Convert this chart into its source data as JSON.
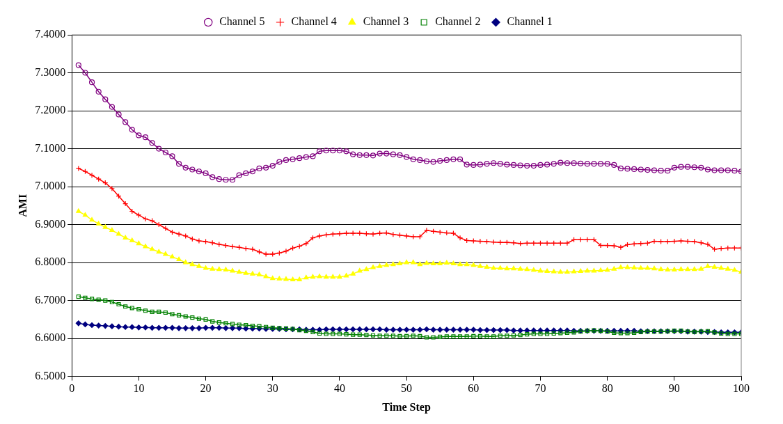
{
  "chart_data": {
    "type": "line",
    "xlabel": "Time Step",
    "ylabel": "AMI",
    "xlim": [
      0,
      100
    ],
    "xticks": [
      0,
      10,
      20,
      30,
      40,
      50,
      60,
      70,
      80,
      90,
      100
    ],
    "ylim": [
      6.5,
      7.4
    ],
    "yticks": [
      {
        "value": 6.5,
        "label": "6.5000"
      },
      {
        "value": 6.6,
        "label": "6.6000"
      },
      {
        "value": 6.7,
        "label": "6.7000"
      },
      {
        "value": 6.8,
        "label": "6.8000"
      },
      {
        "value": 6.9,
        "label": "6.9000"
      },
      {
        "value": 7.0,
        "label": "7.0000"
      },
      {
        "value": 7.1,
        "label": "7.1000"
      },
      {
        "value": 7.2,
        "label": "7.2000"
      },
      {
        "value": 7.3,
        "label": "7.3000"
      },
      {
        "value": 7.4,
        "label": "7.4000"
      }
    ],
    "grid": "y",
    "legend": "top",
    "line_style": "solid",
    "x": [
      1,
      2,
      3,
      4,
      5,
      6,
      7,
      8,
      9,
      10,
      11,
      12,
      13,
      14,
      15,
      16,
      17,
      18,
      19,
      20,
      21,
      22,
      23,
      24,
      25,
      26,
      27,
      28,
      29,
      30,
      31,
      32,
      33,
      34,
      35,
      36,
      37,
      38,
      39,
      40,
      41,
      42,
      43,
      44,
      45,
      46,
      47,
      48,
      49,
      50,
      51,
      52,
      53,
      54,
      55,
      56,
      57,
      58,
      59,
      60,
      61,
      62,
      63,
      64,
      65,
      66,
      67,
      68,
      69,
      70,
      71,
      72,
      73,
      74,
      75,
      76,
      77,
      78,
      79,
      80,
      81,
      82,
      83,
      84,
      85,
      86,
      87,
      88,
      89,
      90,
      91,
      92,
      93,
      94,
      95,
      96,
      97,
      98,
      99,
      100
    ],
    "series": [
      {
        "name": "Channel 5",
        "color": "#800080",
        "marker": "circle",
        "values": [
          7.32,
          7.3,
          7.275,
          7.25,
          7.23,
          7.21,
          7.19,
          7.17,
          7.15,
          7.135,
          7.13,
          7.115,
          7.1,
          7.09,
          7.08,
          7.06,
          7.05,
          7.045,
          7.04,
          7.035,
          7.025,
          7.02,
          7.018,
          7.018,
          7.03,
          7.035,
          7.04,
          7.048,
          7.05,
          7.055,
          7.065,
          7.07,
          7.072,
          7.075,
          7.078,
          7.08,
          7.093,
          7.095,
          7.095,
          7.095,
          7.093,
          7.085,
          7.083,
          7.083,
          7.082,
          7.087,
          7.087,
          7.085,
          7.083,
          7.078,
          7.072,
          7.07,
          7.067,
          7.065,
          7.068,
          7.07,
          7.072,
          7.072,
          7.058,
          7.057,
          7.058,
          7.06,
          7.062,
          7.06,
          7.058,
          7.057,
          7.056,
          7.055,
          7.055,
          7.057,
          7.058,
          7.06,
          7.063,
          7.062,
          7.062,
          7.061,
          7.06,
          7.06,
          7.06,
          7.06,
          7.057,
          7.048,
          7.047,
          7.046,
          7.045,
          7.044,
          7.043,
          7.042,
          7.042,
          7.05,
          7.052,
          7.052,
          7.051,
          7.05,
          7.045,
          7.043,
          7.043,
          7.043,
          7.042,
          7.04
        ]
      },
      {
        "name": "Channel 4",
        "color": "#ff0000",
        "marker": "cross",
        "values": [
          7.048,
          7.04,
          7.03,
          7.02,
          7.01,
          6.995,
          6.975,
          6.955,
          6.935,
          6.925,
          6.915,
          6.91,
          6.9,
          6.89,
          6.88,
          6.875,
          6.87,
          6.862,
          6.857,
          6.855,
          6.852,
          6.848,
          6.845,
          6.842,
          6.84,
          6.837,
          6.835,
          6.828,
          6.822,
          6.822,
          6.825,
          6.83,
          6.838,
          6.843,
          6.85,
          6.865,
          6.87,
          6.873,
          6.875,
          6.876,
          6.877,
          6.877,
          6.877,
          6.876,
          6.875,
          6.877,
          6.878,
          6.874,
          6.872,
          6.87,
          6.868,
          6.868,
          6.885,
          6.882,
          6.88,
          6.878,
          6.877,
          6.865,
          6.858,
          6.857,
          6.856,
          6.855,
          6.854,
          6.853,
          6.853,
          6.852,
          6.85,
          6.851,
          6.851,
          6.851,
          6.851,
          6.851,
          6.851,
          6.851,
          6.86,
          6.86,
          6.86,
          6.86,
          6.845,
          6.845,
          6.844,
          6.84,
          6.847,
          6.849,
          6.85,
          6.851,
          6.856,
          6.855,
          6.855,
          6.856,
          6.857,
          6.856,
          6.855,
          6.852,
          6.848,
          6.835,
          6.837,
          6.838,
          6.838,
          6.838
        ]
      },
      {
        "name": "Channel 3",
        "color": "#ffff00",
        "marker": "triangle",
        "values": [
          6.935,
          6.925,
          6.912,
          6.902,
          6.893,
          6.885,
          6.875,
          6.865,
          6.858,
          6.85,
          6.842,
          6.835,
          6.828,
          6.822,
          6.815,
          6.808,
          6.8,
          6.795,
          6.79,
          6.785,
          6.783,
          6.782,
          6.781,
          6.778,
          6.775,
          6.772,
          6.77,
          6.768,
          6.763,
          6.758,
          6.757,
          6.756,
          6.755,
          6.755,
          6.76,
          6.762,
          6.763,
          6.762,
          6.762,
          6.762,
          6.765,
          6.77,
          6.778,
          6.782,
          6.787,
          6.79,
          6.793,
          6.795,
          6.797,
          6.8,
          6.8,
          6.795,
          6.798,
          6.797,
          6.797,
          6.799,
          6.797,
          6.795,
          6.795,
          6.793,
          6.79,
          6.788,
          6.785,
          6.785,
          6.784,
          6.784,
          6.783,
          6.782,
          6.78,
          6.778,
          6.777,
          6.776,
          6.775,
          6.775,
          6.776,
          6.777,
          6.778,
          6.778,
          6.779,
          6.78,
          6.783,
          6.787,
          6.787,
          6.786,
          6.785,
          6.785,
          6.784,
          6.782,
          6.781,
          6.781,
          6.782,
          6.782,
          6.782,
          6.783,
          6.79,
          6.788,
          6.785,
          6.783,
          6.78,
          6.775
        ]
      },
      {
        "name": "Channel 2",
        "color": "#008000",
        "marker": "square",
        "values": [
          6.71,
          6.707,
          6.704,
          6.702,
          6.7,
          6.696,
          6.69,
          6.684,
          6.68,
          6.677,
          6.673,
          6.67,
          6.67,
          6.668,
          6.664,
          6.661,
          6.658,
          6.655,
          6.652,
          6.65,
          6.645,
          6.642,
          6.64,
          6.638,
          6.636,
          6.635,
          6.633,
          6.632,
          6.63,
          6.628,
          6.627,
          6.626,
          6.625,
          6.622,
          6.62,
          6.617,
          6.613,
          6.612,
          6.612,
          6.612,
          6.611,
          6.61,
          6.61,
          6.609,
          6.608,
          6.607,
          6.607,
          6.607,
          6.606,
          6.606,
          6.607,
          6.606,
          6.603,
          6.603,
          6.604,
          6.605,
          6.605,
          6.605,
          6.605,
          6.606,
          6.606,
          6.605,
          6.605,
          6.607,
          6.607,
          6.608,
          6.609,
          6.611,
          6.612,
          6.612,
          6.612,
          6.613,
          6.614,
          6.615,
          6.616,
          6.618,
          6.62,
          6.621,
          6.62,
          6.618,
          6.615,
          6.614,
          6.614,
          6.615,
          6.617,
          6.618,
          6.618,
          6.618,
          6.619,
          6.62,
          6.62,
          6.618,
          6.617,
          6.618,
          6.619,
          6.616,
          6.613,
          6.612,
          6.612,
          6.612
        ]
      },
      {
        "name": "Channel 1",
        "color": "#000080",
        "marker": "diamond",
        "values": [
          6.64,
          6.637,
          6.635,
          6.634,
          6.633,
          6.632,
          6.631,
          6.63,
          6.63,
          6.629,
          6.629,
          6.628,
          6.628,
          6.628,
          6.628,
          6.627,
          6.627,
          6.627,
          6.627,
          6.628,
          6.628,
          6.628,
          6.627,
          6.627,
          6.627,
          6.626,
          6.626,
          6.626,
          6.625,
          6.625,
          6.625,
          6.624,
          6.624,
          6.624,
          6.623,
          6.623,
          6.623,
          6.624,
          6.624,
          6.624,
          6.624,
          6.624,
          6.624,
          6.624,
          6.624,
          6.624,
          6.623,
          6.623,
          6.623,
          6.623,
          6.623,
          6.623,
          6.624,
          6.623,
          6.623,
          6.623,
          6.623,
          6.623,
          6.623,
          6.623,
          6.622,
          6.622,
          6.622,
          6.622,
          6.622,
          6.621,
          6.621,
          6.621,
          6.621,
          6.621,
          6.621,
          6.621,
          6.621,
          6.621,
          6.62,
          6.62,
          6.62,
          6.62,
          6.62,
          6.62,
          6.62,
          6.62,
          6.62,
          6.62,
          6.619,
          6.619,
          6.619,
          6.619,
          6.619,
          6.619,
          6.619,
          6.618,
          6.618,
          6.618,
          6.617,
          6.617,
          6.616,
          6.616,
          6.616,
          6.616
        ]
      }
    ]
  }
}
